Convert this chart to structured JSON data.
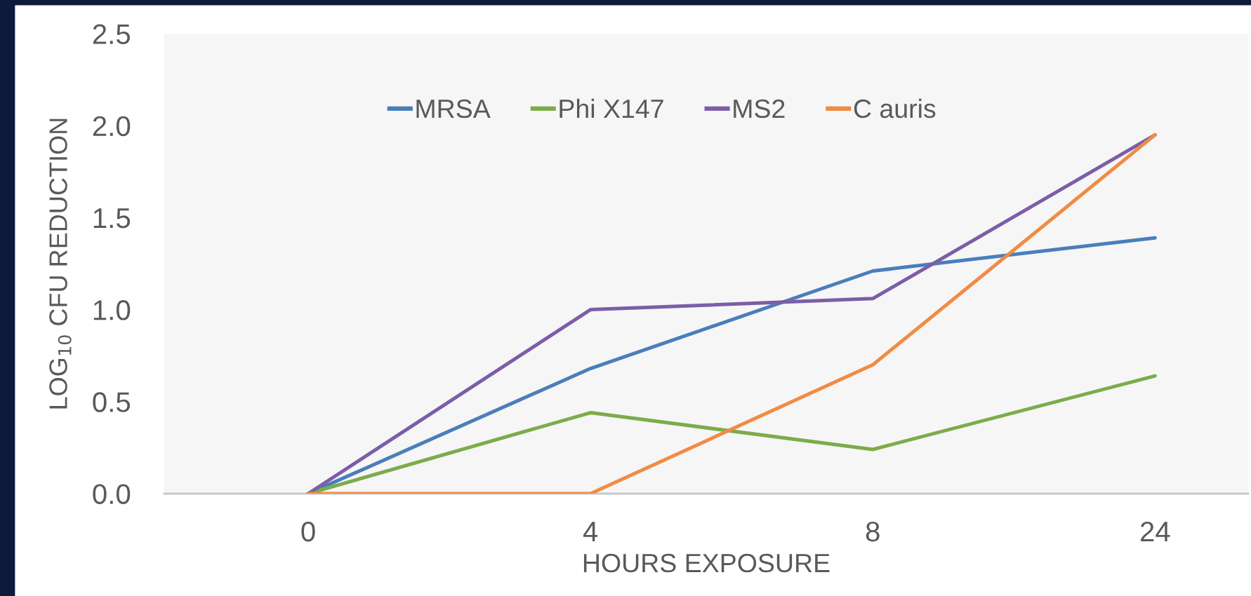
{
  "chart_data": {
    "type": "line",
    "xlabel": "HOURS EXPOSURE",
    "ylabel": "LOG$_{10}$ CFU REDUCTION",
    "categories": [
      "0",
      "4",
      "8",
      "24"
    ],
    "series": [
      {
        "name": "MRSA",
        "color": "#4a7ebb",
        "values": [
          0,
          0.68,
          1.21,
          1.39
        ]
      },
      {
        "name": "Phi X147",
        "color": "#7cac4a",
        "values": [
          0,
          0.44,
          0.24,
          0.64
        ]
      },
      {
        "name": "MS2",
        "color": "#7b5ea7",
        "values": [
          0,
          1.0,
          1.06,
          1.95
        ]
      },
      {
        "name": "C auris",
        "color": "#f08c44",
        "values": [
          0,
          0,
          0.7,
          1.95
        ]
      }
    ],
    "ylim": [
      0,
      2.5
    ],
    "yticks": [
      {
        "value": 0,
        "label": "0.0"
      },
      {
        "value": 0.5,
        "label": "0.5"
      },
      {
        "value": 1,
        "label": "1.0"
      },
      {
        "value": 1.5,
        "label": "1.5"
      },
      {
        "value": 2,
        "label": "2.0"
      },
      {
        "value": 2.5,
        "label": "2.5"
      }
    ],
    "legend": "top",
    "marker": "none",
    "line_style": "solid",
    "grid": false
  }
}
